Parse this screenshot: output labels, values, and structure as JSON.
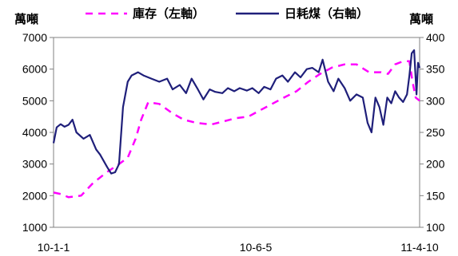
{
  "chart_data": {
    "type": "line",
    "title": "",
    "left_axis": {
      "unit_label": "萬噸",
      "ylim": [
        1000,
        7000
      ],
      "ticks": [
        "1000",
        "2000",
        "3000",
        "4000",
        "5000",
        "6000",
        "7000"
      ]
    },
    "right_axis": {
      "unit_label": "萬噸",
      "ylim": [
        100,
        400
      ],
      "ticks": [
        "100",
        "150",
        "200",
        "250",
        "300",
        "350",
        "400"
      ]
    },
    "x_axis": {
      "ticks": [
        "10-1-1",
        "10-6-5",
        "11-4-10"
      ],
      "range": [
        "2010-01-01",
        "2011-04-10"
      ]
    },
    "grid": false,
    "legend_position": "top",
    "series": [
      {
        "name": "庫存（左軸）",
        "axis": "left",
        "color": "#ff00ff",
        "style": "dashed",
        "points": [
          [
            "2010-01-01",
            2100
          ],
          [
            "2010-01-10",
            2050
          ],
          [
            "2010-01-20",
            1950
          ],
          [
            "2010-02-05",
            2000
          ],
          [
            "2010-02-20",
            2400
          ],
          [
            "2010-03-10",
            2750
          ],
          [
            "2010-03-25",
            3000
          ],
          [
            "2010-04-05",
            3200
          ],
          [
            "2010-04-15",
            3800
          ],
          [
            "2010-04-22",
            4400
          ],
          [
            "2010-05-01",
            4950
          ],
          [
            "2010-05-15",
            4900
          ],
          [
            "2010-06-01",
            4600
          ],
          [
            "2010-06-15",
            4400
          ],
          [
            "2010-07-01",
            4300
          ],
          [
            "2010-07-20",
            4250
          ],
          [
            "2010-08-05",
            4350
          ],
          [
            "2010-08-20",
            4450
          ],
          [
            "2010-09-05",
            4500
          ],
          [
            "2010-09-20",
            4700
          ],
          [
            "2010-10-05",
            4900
          ],
          [
            "2010-10-20",
            5100
          ],
          [
            "2010-11-05",
            5300
          ],
          [
            "2010-11-20",
            5600
          ],
          [
            "2010-12-05",
            5850
          ],
          [
            "2010-12-20",
            6050
          ],
          [
            "2011-01-05",
            6150
          ],
          [
            "2011-01-20",
            6150
          ],
          [
            "2011-02-05",
            5900
          ],
          [
            "2011-02-20",
            5900
          ],
          [
            "2011-03-01",
            5850
          ],
          [
            "2011-03-10",
            6150
          ],
          [
            "2011-03-20",
            6250
          ],
          [
            "2011-03-28",
            6250
          ],
          [
            "2011-04-01",
            5600
          ],
          [
            "2011-04-05",
            5100
          ],
          [
            "2011-04-10",
            5000
          ]
        ]
      },
      {
        "name": "日耗煤（右軸）",
        "axis": "right",
        "color": "#1f1f7a",
        "style": "solid",
        "points": [
          [
            "2010-01-01",
            233
          ],
          [
            "2010-01-05",
            258
          ],
          [
            "2010-01-10",
            263
          ],
          [
            "2010-01-15",
            259
          ],
          [
            "2010-01-20",
            262
          ],
          [
            "2010-01-25",
            270
          ],
          [
            "2010-01-30",
            250
          ],
          [
            "2010-02-08",
            240
          ],
          [
            "2010-02-16",
            246
          ],
          [
            "2010-02-24",
            223
          ],
          [
            "2010-03-01",
            215
          ],
          [
            "2010-03-10",
            195
          ],
          [
            "2010-03-15",
            185
          ],
          [
            "2010-03-20",
            187
          ],
          [
            "2010-03-25",
            200
          ],
          [
            "2010-03-30",
            290
          ],
          [
            "2010-04-05",
            330
          ],
          [
            "2010-04-10",
            340
          ],
          [
            "2010-04-18",
            345
          ],
          [
            "2010-04-25",
            340
          ],
          [
            "2010-05-05",
            335
          ],
          [
            "2010-05-15",
            330
          ],
          [
            "2010-05-25",
            335
          ],
          [
            "2010-06-01",
            318
          ],
          [
            "2010-06-10",
            325
          ],
          [
            "2010-06-18",
            312
          ],
          [
            "2010-06-25",
            335
          ],
          [
            "2010-07-03",
            318
          ],
          [
            "2010-07-10",
            302
          ],
          [
            "2010-07-18",
            318
          ],
          [
            "2010-07-25",
            314
          ],
          [
            "2010-08-03",
            312
          ],
          [
            "2010-08-10",
            320
          ],
          [
            "2010-08-18",
            315
          ],
          [
            "2010-08-25",
            320
          ],
          [
            "2010-09-03",
            316
          ],
          [
            "2010-09-10",
            320
          ],
          [
            "2010-09-18",
            312
          ],
          [
            "2010-09-25",
            322
          ],
          [
            "2010-10-03",
            318
          ],
          [
            "2010-10-10",
            335
          ],
          [
            "2010-10-18",
            340
          ],
          [
            "2010-10-25",
            330
          ],
          [
            "2010-11-03",
            345
          ],
          [
            "2010-11-10",
            337
          ],
          [
            "2010-11-18",
            350
          ],
          [
            "2010-11-25",
            352
          ],
          [
            "2010-12-03",
            345
          ],
          [
            "2010-12-08",
            365
          ],
          [
            "2010-12-15",
            330
          ],
          [
            "2010-12-22",
            315
          ],
          [
            "2010-12-28",
            335
          ],
          [
            "2011-01-05",
            320
          ],
          [
            "2011-01-12",
            300
          ],
          [
            "2011-01-20",
            310
          ],
          [
            "2011-01-28",
            305
          ],
          [
            "2011-02-03",
            265
          ],
          [
            "2011-02-08",
            250
          ],
          [
            "2011-02-13",
            305
          ],
          [
            "2011-02-18",
            290
          ],
          [
            "2011-02-23",
            262
          ],
          [
            "2011-02-28",
            305
          ],
          [
            "2011-03-05",
            296
          ],
          [
            "2011-03-10",
            315
          ],
          [
            "2011-03-15",
            305
          ],
          [
            "2011-03-20",
            298
          ],
          [
            "2011-03-25",
            310
          ],
          [
            "2011-03-28",
            340
          ],
          [
            "2011-03-31",
            375
          ],
          [
            "2011-04-03",
            380
          ],
          [
            "2011-04-06",
            310
          ],
          [
            "2011-04-08",
            360
          ],
          [
            "2011-04-10",
            352
          ]
        ]
      }
    ]
  }
}
